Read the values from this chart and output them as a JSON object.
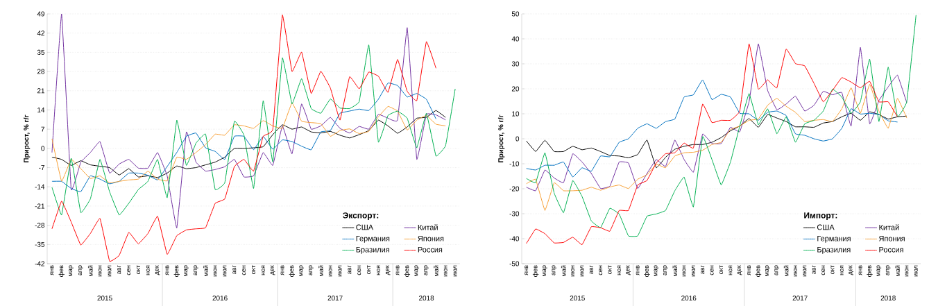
{
  "chart_data": [
    {
      "type": "line",
      "ylabel": "Прирост, % г/г",
      "legend_title": "Экспорт:",
      "categories": [
        "янв",
        "фев",
        "мар",
        "апр",
        "май",
        "июн",
        "июл",
        "авг",
        "сен",
        "окт",
        "ноя",
        "дек",
        "янв",
        "фев",
        "мар",
        "апр",
        "май",
        "июн",
        "июл",
        "авг",
        "сен",
        "окт",
        "ноя",
        "дек",
        "янв",
        "фев",
        "мар",
        "апр",
        "май",
        "июн",
        "июл",
        "авг",
        "сен",
        "окт",
        "ноя",
        "дек",
        "янв",
        "фев",
        "мар",
        "апр",
        "май",
        "июн",
        "июл"
      ],
      "annotations": [
        "2015",
        "2016",
        "2017",
        "2018"
      ],
      "ylim": [
        -42,
        49
      ],
      "yticks": [
        -42,
        -35,
        -28,
        -21,
        -14,
        -7,
        0,
        7,
        14,
        21,
        28,
        35,
        42,
        49
      ],
      "grid": "y",
      "legend": "bottom right",
      "series": [
        {
          "name": "США",
          "color": "#000000",
          "values": [
            -3.2,
            -4,
            -6.2,
            -4.5,
            -6,
            -6.5,
            -7,
            -9.7,
            -7.4,
            -10.4,
            -10,
            -10.6,
            -9,
            -6.4,
            -7.4,
            -7,
            -6,
            -5,
            -3.2,
            0,
            0,
            0.2,
            0.6,
            5,
            8.6,
            7,
            7.8,
            6,
            5.6,
            6.2,
            4.8,
            3.8,
            5,
            6.5,
            10.3,
            8.2,
            5.5,
            7.8,
            11,
            11.3,
            13.8,
            11.3,
            null
          ]
        },
        {
          "name": "Китай",
          "color": "#7030a0",
          "values": [
            -1.5,
            49,
            -15,
            -5,
            -1.5,
            2.5,
            -9,
            -5.7,
            -4,
            -7.2,
            -7.2,
            -1.5,
            -10,
            -29,
            6,
            -5,
            -8.3,
            -7.7,
            -6.7,
            -4,
            -10.4,
            -10,
            -1.5,
            -6.2,
            8.2,
            -2,
            16.2,
            7,
            8.2,
            11.3,
            7.3,
            5.6,
            8,
            7,
            12.4,
            11,
            10.3,
            44,
            -4,
            12.4,
            12.2,
            10.4,
            null
          ]
        },
        {
          "name": "Германия",
          "color": "#0070c0",
          "values": [
            -12,
            -12,
            -14.6,
            -15.8,
            -10,
            -11.2,
            -12.9,
            -12,
            -9,
            -9,
            -9.8,
            -11.5,
            -6.6,
            -1.5,
            4.4,
            5.6,
            0.2,
            -1.1,
            -4,
            4.4,
            4.4,
            -0.5,
            4.4,
            -0.3,
            3.1,
            2.5,
            0.8,
            -0.5,
            6,
            6.5,
            12.8,
            13.6,
            14.3,
            13.8,
            17.9,
            23.8,
            22.9,
            18.7,
            20,
            17.9,
            10.7,
            null,
            null
          ]
        },
        {
          "name": "Япония",
          "color": "#f7a035",
          "values": [
            3.5,
            -12,
            -4,
            -7.4,
            -11,
            -10,
            -12.6,
            -12,
            -11.5,
            -11.2,
            -8.3,
            -11.2,
            -11.8,
            -3.2,
            -4,
            -1.5,
            1.4,
            5.2,
            4.8,
            8.6,
            8.2,
            7.3,
            10.1,
            8.2,
            7.3,
            16.6,
            9.9,
            9.4,
            9,
            4.4,
            6.5,
            7.1,
            5.4,
            6.2,
            11.5,
            15.3,
            13.6,
            6.7,
            10.3,
            12,
            8.8,
            8.2,
            null
          ]
        },
        {
          "name": "Бразилия",
          "color": "#00b050",
          "values": [
            -14.2,
            -24.3,
            -3.6,
            -23.4,
            -18.4,
            -4,
            -15.8,
            -24.3,
            -20,
            -15,
            -12,
            -4,
            -18,
            10.3,
            -6.2,
            1.9,
            5.2,
            -15,
            -12.5,
            9.9,
            4.8,
            -14.6,
            17.4,
            -4.9,
            33,
            16.2,
            25.4,
            14.5,
            12.8,
            18,
            14.7,
            14.5,
            17,
            37.7,
            2.3,
            12,
            13.6,
            11,
            0.2,
            12.8,
            -2.8,
            1,
            21.7
          ]
        },
        {
          "name": "Россия",
          "color": "#ff0000",
          "values": [
            -29.3,
            -19.2,
            -26.8,
            -35.2,
            -31,
            -25.5,
            -41.1,
            -39,
            -30.6,
            -34.8,
            -31,
            -24.7,
            -38.6,
            -31.8,
            -29.7,
            -29.3,
            -28.9,
            -20,
            -18.4,
            -6.6,
            -4,
            -8.3,
            4.4,
            6.9,
            48.6,
            28,
            35.1,
            20,
            28.1,
            22,
            10.3,
            26.1,
            21.7,
            27.8,
            26.3,
            20.4,
            32.4,
            20.8,
            17.4,
            38.9,
            29.2,
            null,
            null
          ]
        }
      ]
    },
    {
      "type": "line",
      "ylabel": "Прирост, % г/г",
      "legend_title": "Импорт:",
      "categories": [
        "янв",
        "фев",
        "мар",
        "апр",
        "май",
        "июн",
        "июл",
        "авг",
        "сен",
        "окт",
        "ноя",
        "дек",
        "янв",
        "фев",
        "мар",
        "апр",
        "май",
        "июн",
        "июл",
        "авг",
        "сен",
        "окт",
        "ноя",
        "дек",
        "янв",
        "фев",
        "мар",
        "апр",
        "май",
        "июн",
        "июл",
        "авг",
        "сен",
        "окт",
        "ноя",
        "дек",
        "янв",
        "фев",
        "мар",
        "апр",
        "май",
        "июн",
        "июл"
      ],
      "annotations": [
        "2015",
        "2016",
        "2017",
        "2018"
      ],
      "ylim": [
        -50,
        50
      ],
      "yticks": [
        -50,
        -40,
        -30,
        -20,
        -10,
        0,
        10,
        20,
        30,
        40,
        50
      ],
      "grid": "y",
      "legend": "bottom right",
      "series": [
        {
          "name": "США",
          "color": "#000000",
          "values": [
            -0.9,
            -5.1,
            -0.6,
            -5.1,
            -5.1,
            -3,
            -4.4,
            -3.7,
            -5.1,
            -6.7,
            -6.9,
            -7.6,
            -6.3,
            -0.5,
            -11.6,
            -7.4,
            -4.2,
            -3,
            -2.3,
            -2.3,
            -1.4,
            0.5,
            3.2,
            5.1,
            8.1,
            4.6,
            9.7,
            8.3,
            6.9,
            4.8,
            4.8,
            4.6,
            6.3,
            6.9,
            8.8,
            10.2,
            7.4,
            10.8,
            9.7,
            7.9,
            8.8,
            9.1,
            null
          ]
        },
        {
          "name": "Китай",
          "color": "#7030a0",
          "values": [
            -19.4,
            -20.8,
            -12.5,
            -15.7,
            -17.6,
            -6,
            -9.3,
            -13.9,
            -19.9,
            -19,
            -9.3,
            -9.7,
            -19.9,
            -13.9,
            -8.3,
            -11.1,
            -0.5,
            -8.3,
            -13.4,
            1.9,
            -1.9,
            -1.9,
            4.6,
            2.8,
            14.8,
            38,
            19.4,
            11.6,
            13.9,
            17.1,
            11.1,
            13.4,
            19,
            17.6,
            18.5,
            5.1,
            36.6,
            6,
            15.3,
            20.8,
            25.5,
            14.4,
            null
          ]
        },
        {
          "name": "Германия",
          "color": "#0070c0",
          "values": [
            -11.9,
            -12.5,
            -10.6,
            -10.6,
            -9.3,
            -15.3,
            -11.6,
            -13,
            -6.9,
            -7.2,
            -1.4,
            0,
            4.2,
            6,
            4.2,
            6.9,
            7.9,
            16.7,
            17.6,
            23.6,
            15.7,
            17.8,
            16.7,
            10.2,
            10,
            7.4,
            10.6,
            11.1,
            9.3,
            2,
            1.4,
            0,
            -0.9,
            0,
            4.2,
            12,
            9.9,
            10.2,
            9.7,
            7.2,
            6.7,
            null,
            null
          ]
        },
        {
          "name": "Япония",
          "color": "#f7a035",
          "values": [
            -18,
            -16.2,
            -28.7,
            -17.6,
            -20.8,
            -20.8,
            -20.6,
            -19.4,
            -20.6,
            -19.3,
            -18.5,
            -19.9,
            -16.2,
            -14.4,
            -10.2,
            -11.6,
            -6.9,
            -5.6,
            -5.4,
            -4.6,
            -2.3,
            -1.4,
            3.7,
            5.1,
            7.4,
            7.9,
            13.4,
            16.2,
            13,
            10.6,
            6.9,
            7.4,
            7.7,
            6.9,
            12,
            20.4,
            10.2,
            21.8,
            11.1,
            4.2,
            16.2,
            8.3,
            null
          ]
        },
        {
          "name": "Бразилия",
          "color": "#00b050",
          "values": [
            -15.9,
            -17.6,
            -5.6,
            -21.8,
            -29.6,
            -16.7,
            -23.1,
            -32.9,
            -35.6,
            -27.8,
            -30.1,
            -38.9,
            -38.9,
            -31,
            -30.1,
            -28.7,
            -20.8,
            -15.3,
            -27.3,
            0.9,
            -8.3,
            -18.5,
            -9.3,
            5.1,
            18.1,
            5.6,
            12,
            2,
            8.8,
            -1.4,
            6,
            7.4,
            11.1,
            19.9,
            16.7,
            10.2,
            14.8,
            31.9,
            6.9,
            28.7,
            8.8,
            14.8,
            49.5
          ]
        },
        {
          "name": "Россия",
          "color": "#ff0000",
          "values": [
            -41.9,
            -36.1,
            -38,
            -41.7,
            -41.5,
            -39.4,
            -42.4,
            -35.2,
            -35.6,
            -37,
            -28.7,
            -28.7,
            -18.5,
            -16.7,
            -9.7,
            -6,
            -5.6,
            -1.7,
            -3.7,
            13.9,
            6.5,
            7.4,
            7.4,
            11.1,
            38,
            19.9,
            23.6,
            20.4,
            35.9,
            30.1,
            29.2,
            22.2,
            14.8,
            19.4,
            24.5,
            22.7,
            20.4,
            23,
            14.8,
            14.8,
            8.8,
            null,
            null
          ]
        }
      ]
    }
  ]
}
